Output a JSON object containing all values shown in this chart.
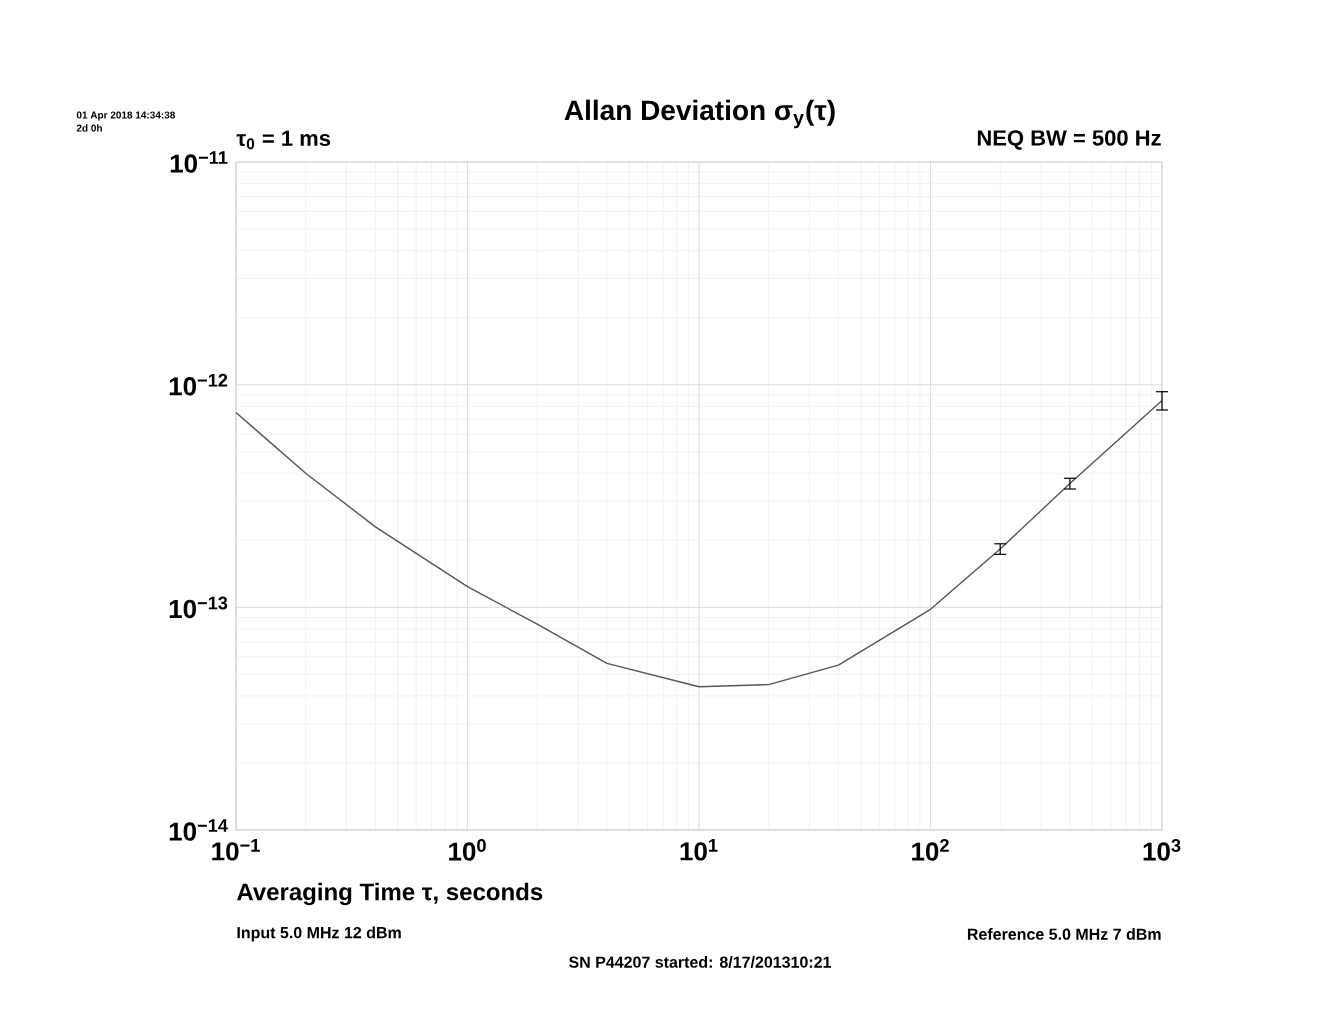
{
  "chart_data": {
    "type": "line",
    "title": "Allan Deviation σ$_{y}$(τ)",
    "xlabel": "Averaging Time τ, seconds",
    "annotations": [
      "01 Apr 2018 14:34:38",
      "2d 0h",
      "τ$_{0}$ = 1 ms",
      "NEQ BW = 500 Hz",
      "Input 5.0 MHz 12 dBm",
      "Reference 5.0 MHz 7 dBm",
      "SN P44207 started: 8/17/201310:21"
    ],
    "x": [
      0.1,
      0.2,
      0.4,
      1,
      2,
      4,
      10,
      20,
      40,
      100,
      200,
      400,
      1000
    ],
    "series": [
      {
        "color": "#555555",
        "values": [
          7.5e-13,
          4e-13,
          2.3e-13,
          1.24e-13,
          8.4e-14,
          5.6e-14,
          4.4e-14,
          4.5e-14,
          5.5e-14,
          9.8e-14,
          1.83e-13,
          3.6e-13,
          8.5e-13
        ],
        "errors": [
          null,
          null,
          null,
          null,
          null,
          null,
          null,
          null,
          null,
          null,
          1e-14,
          2e-14,
          8e-14
        ]
      }
    ],
    "log": "xy",
    "grid": true,
    "marker": "none",
    "line_style": "solid",
    "xlim": [
      0.1,
      1000
    ],
    "ylim": [
      1e-14,
      1e-11
    ],
    "xticks": [
      {
        "value": 0.1,
        "label": "10$^{−1}$"
      },
      {
        "value": 1,
        "label": "10$^{0}$"
      },
      {
        "value": 10,
        "label": "10$^{1}$"
      },
      {
        "value": 100,
        "label": "10$^{2}$"
      },
      {
        "value": 1000,
        "label": "10$^{3}$"
      }
    ],
    "yticks": [
      {
        "value": 1e-14,
        "label": "10$^{−14}$"
      },
      {
        "value": 1e-13,
        "label": "10$^{−13}$"
      },
      {
        "value": 1e-12,
        "label": "10$^{−12}$"
      },
      {
        "value": 1e-11,
        "label": "10$^{−11}$"
      }
    ]
  }
}
